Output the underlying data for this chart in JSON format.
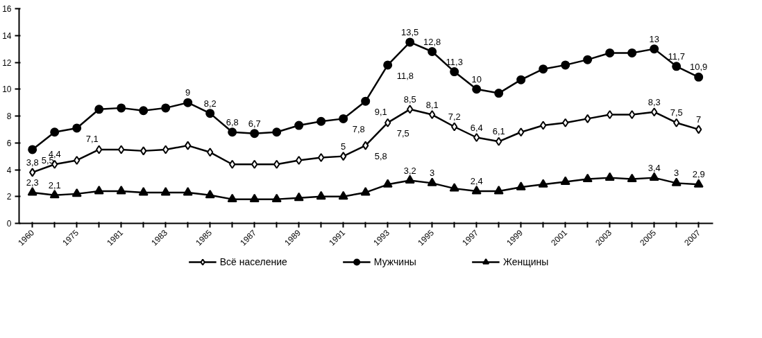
{
  "chart_data": {
    "type": "line",
    "categories": [
      "1960",
      null,
      "1975",
      null,
      "1981",
      null,
      "1983",
      null,
      "1985",
      null,
      "1987",
      null,
      "1989",
      null,
      "1991",
      null,
      "1993",
      null,
      "1995",
      null,
      "1997",
      null,
      "1999",
      null,
      "2001",
      null,
      "2003",
      null,
      "2005",
      null,
      "2007"
    ],
    "series": [
      {
        "name": "Всё население",
        "color": "#000000",
        "marker": "diamond",
        "values": [
          3.8,
          4.4,
          4.7,
          5.5,
          5.5,
          5.4,
          5.5,
          5.8,
          5.3,
          4.4,
          4.4,
          4.4,
          4.7,
          4.9,
          5.0,
          5.8,
          7.5,
          8.5,
          8.1,
          7.2,
          6.4,
          6.1,
          6.8,
          7.3,
          7.5,
          7.8,
          8.1,
          8.1,
          8.3,
          7.5,
          7.0
        ],
        "value_labels": [
          "3,8",
          "4,4",
          null,
          null,
          null,
          null,
          null,
          null,
          null,
          null,
          null,
          null,
          null,
          null,
          "5",
          "5,8",
          "7,5",
          "8,5",
          "8,1",
          "7,2",
          "6,4",
          "6,1",
          null,
          null,
          null,
          null,
          null,
          null,
          "8,3",
          "7,5",
          "7"
        ]
      },
      {
        "name": "Мужчины",
        "color": "#000000",
        "marker": "circle",
        "values": [
          5.5,
          6.8,
          7.1,
          8.5,
          8.6,
          8.4,
          8.6,
          9.0,
          8.2,
          6.8,
          6.7,
          6.8,
          7.3,
          7.6,
          7.8,
          9.1,
          11.8,
          13.5,
          12.8,
          11.3,
          10.0,
          9.7,
          10.7,
          11.5,
          11.8,
          12.2,
          12.7,
          12.7,
          13.0,
          11.7,
          10.9
        ],
        "value_labels": [
          "5,5",
          null,
          "7,1",
          null,
          null,
          null,
          null,
          "9",
          "8,2",
          "6,8",
          "6,7",
          null,
          null,
          null,
          "7,8",
          "9,1",
          "11,8",
          "13,5",
          "12,8",
          "11,3",
          "10",
          null,
          null,
          null,
          null,
          null,
          null,
          null,
          "13",
          "11,7",
          "10,9"
        ]
      },
      {
        "name": "Женщины",
        "color": "#000000",
        "marker": "triangle",
        "values": [
          2.3,
          2.1,
          2.2,
          2.4,
          2.4,
          2.3,
          2.3,
          2.3,
          2.1,
          1.8,
          1.8,
          1.8,
          1.9,
          2.0,
          2.0,
          2.3,
          2.9,
          3.2,
          3.0,
          2.6,
          2.4,
          2.4,
          2.7,
          2.9,
          3.1,
          3.3,
          3.4,
          3.3,
          3.4,
          3.0,
          2.9
        ],
        "value_labels": [
          "2,3",
          "2,1",
          null,
          null,
          null,
          null,
          null,
          null,
          null,
          null,
          null,
          null,
          null,
          null,
          null,
          null,
          null,
          "3,2",
          "3",
          null,
          "2,4",
          null,
          null,
          null,
          null,
          null,
          null,
          null,
          "3,4",
          "3",
          "2,9"
        ]
      }
    ],
    "ylim": [
      0,
      16
    ],
    "yticks": [
      0,
      2,
      4,
      6,
      8,
      10,
      12,
      14,
      16
    ],
    "grid": false,
    "legend": "bottom",
    "line_style": "solid"
  }
}
